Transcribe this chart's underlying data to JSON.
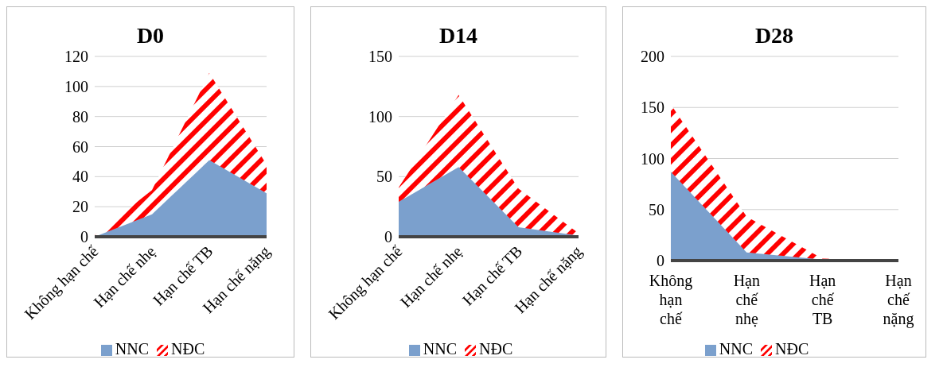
{
  "chart_data": [
    {
      "type": "area",
      "title": "D0",
      "stacked": true,
      "categories": [
        "Không hạn chế",
        "Hạn chế nhẹ",
        "Hạn chế TB",
        "Hạn chế nặng"
      ],
      "ylim": [
        0,
        120
      ],
      "yticks": [
        0,
        20,
        40,
        60,
        80,
        100,
        120
      ],
      "grid": "y",
      "legend": "bottom",
      "series": [
        {
          "name": "NNC",
          "color": "#7ba0cd",
          "values": [
            0,
            15,
            51,
            29
          ]
        },
        {
          "name": "NĐC",
          "color": "#ff0000",
          "values": [
            1,
            16,
            58,
            19
          ]
        }
      ]
    },
    {
      "type": "area",
      "title": "D14",
      "stacked": true,
      "categories": [
        "Không hạn chế",
        "Hạn chế nhẹ",
        "Hạn chế TB",
        "Hạn chế nặng"
      ],
      "ylim": [
        0,
        150
      ],
      "yticks": [
        0,
        50,
        100,
        150
      ],
      "grid": "y",
      "legend": "bottom",
      "series": [
        {
          "name": "NNC",
          "color": "#7ba0cd",
          "values": [
            29,
            58,
            8,
            1
          ]
        },
        {
          "name": "NĐC",
          "color": "#ff0000",
          "values": [
            12,
            60,
            32,
            2
          ]
        }
      ]
    },
    {
      "type": "area",
      "title": "D28",
      "stacked": true,
      "categories": [
        "Không hạn chế",
        "Hạn chế nhẹ",
        "Hạn chế TB",
        "Hạn chế nặng"
      ],
      "ylim": [
        0,
        200
      ],
      "yticks": [
        0,
        50,
        100,
        150,
        200
      ],
      "grid": "y",
      "legend": "bottom",
      "series": [
        {
          "name": "NNC",
          "color": "#7ba0cd",
          "values": [
            87,
            8,
            1,
            0
          ]
        },
        {
          "name": "NĐC",
          "color": "#ff0000",
          "values": [
            66,
            35,
            1,
            0
          ]
        }
      ]
    }
  ]
}
